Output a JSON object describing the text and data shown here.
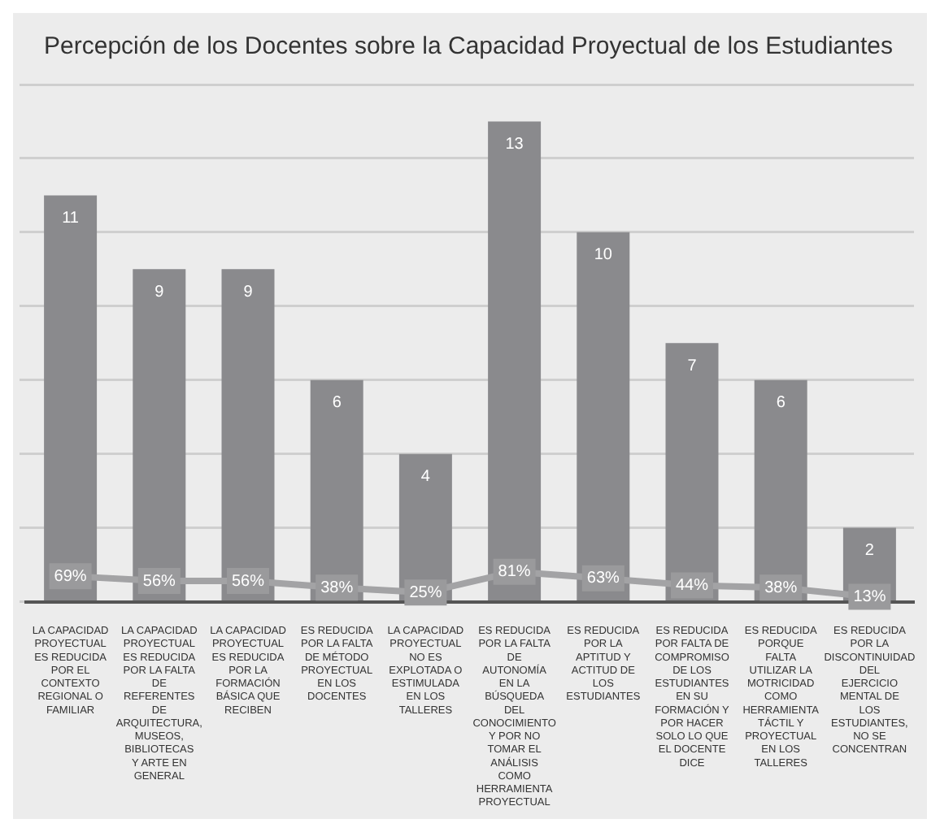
{
  "chart_data": {
    "type": "bar",
    "title": "Percepción de los Docentes sobre la Capacidad Proyectual de los Estudiantes",
    "categories": [
      "LA CAPACIDAD PROYECTUAL ES REDUCIDA POR EL CONTEXTO REGIONAL O FAMILIAR",
      "LA CAPACIDAD PROYECTUAL ES REDUCIDA POR LA FALTA DE REFERENTES DE ARQUITECTURA, MUSEOS, BIBLIOTECAS Y ARTE EN GENERAL",
      "LA CAPACIDAD PROYECTUAL ES REDUCIDA POR LA FORMACIÓN BÁSICA QUE RECIBEN",
      "ES REDUCIDA POR LA FALTA DE MÉTODO PROYECTUAL EN LOS DOCENTES",
      "LA CAPACIDAD PROYECTUAL NO ES EXPLOTADA O ESTIMULADA EN LOS TALLERES",
      "ES REDUCIDA POR LA FALTA DE AUTONOMÍA EN LA BÚSQUEDA DEL CONOCIMIENTO Y POR NO TOMAR EL ANÁLISIS COMO HERRAMIENTA PROYECTUAL",
      "ES REDUCIDA POR LA APTITUD Y ACTITUD DE LOS ESTUDIANTES",
      "ES REDUCIDA POR FALTA DE COMPROMISO DE LOS ESTUDIANTES EN SU FORMACIÓN Y POR HACER SOLO LO QUE EL DOCENTE DICE",
      "ES REDUCIDA PORQUE FALTA UTILIZAR LA MOTRICIDAD COMO HERRAMIENTA TÁCTIL Y PROYECTUAL EN LOS TALLERES",
      "ES REDUCIDA POR LA DISCONTINUIDAD DEL EJERCICIO MENTAL DE LOS ESTUDIANTES, NO SE CONCENTRAN"
    ],
    "series": [
      {
        "color": "#8a8a8d",
        "values": [
          11,
          9,
          9,
          6,
          4,
          13,
          10,
          7,
          6,
          2
        ]
      },
      {
        "type": "line",
        "marker": "square",
        "color": "#a3a3a5",
        "values": [
          0.69,
          0.56,
          0.56,
          0.38,
          0.25,
          0.81,
          0.63,
          0.44,
          0.38,
          0.13
        ],
        "value_labels": [
          "69%",
          "56%",
          "56%",
          "38%",
          "25%",
          "81%",
          "63%",
          "44%",
          "38%",
          "13%"
        ]
      }
    ],
    "ylim": [
      0,
      14
    ],
    "yticks": [
      {
        "value": 0,
        "label": null
      },
      {
        "value": 2,
        "label": null
      },
      {
        "value": 4,
        "label": null
      },
      {
        "value": 6,
        "label": null
      },
      {
        "value": 8,
        "label": null
      },
      {
        "value": 10,
        "label": null
      },
      {
        "value": 12,
        "label": null
      },
      {
        "value": 14,
        "label": null
      }
    ],
    "tick_labels": "x",
    "grid": "y",
    "data_labels": true
  }
}
